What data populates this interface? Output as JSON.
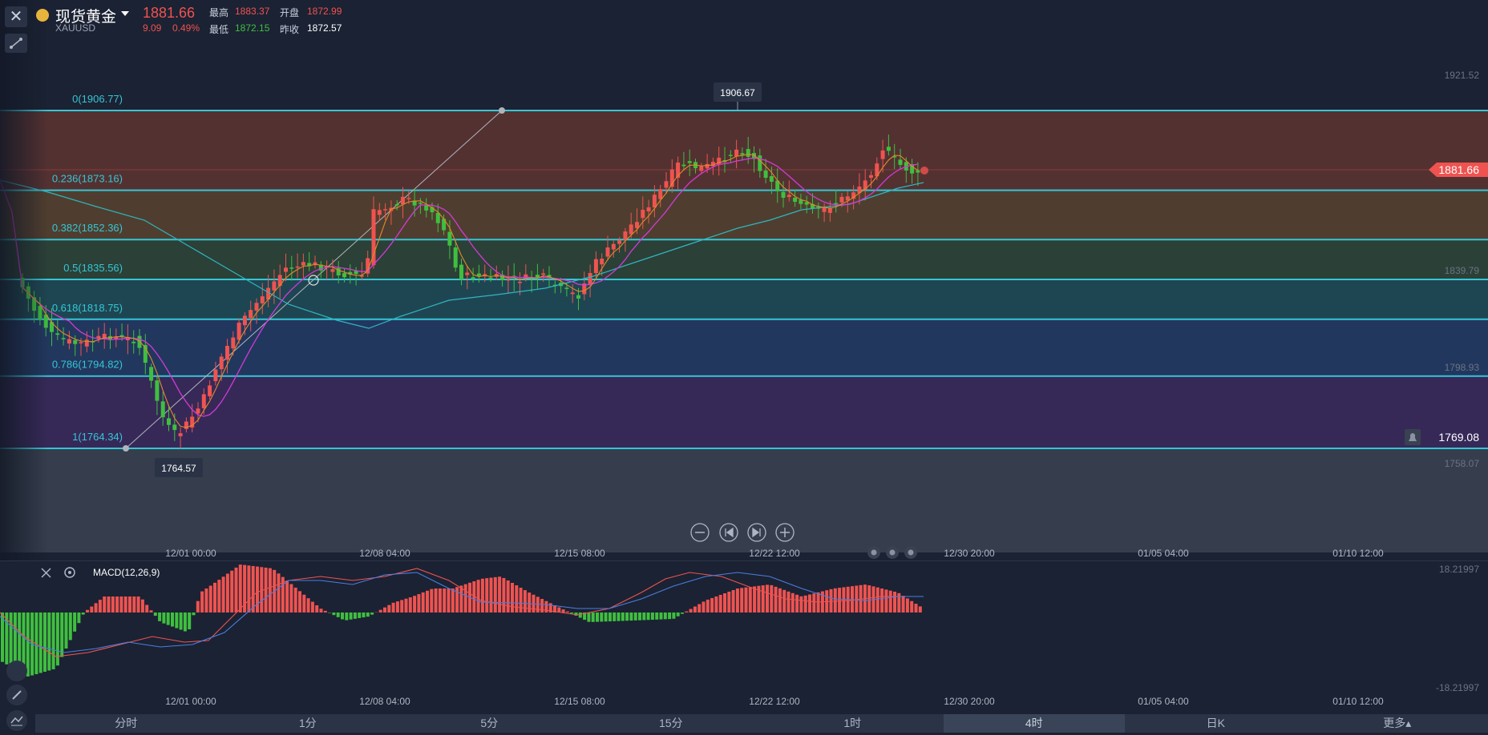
{
  "header": {
    "name": "现货黄金",
    "code": "XAUUSD",
    "price": "1881.66",
    "change": "9.09",
    "change_pct": "0.49%",
    "high_label": "最高",
    "high": "1883.37",
    "open_label": "开盘",
    "open": "1872.99",
    "low_label": "最低",
    "low": "1872.15",
    "prev_label": "昨收",
    "prev": "1872.57"
  },
  "fib": [
    {
      "label": "0(1906.77)",
      "price": 1906.77,
      "band": "#5a3331"
    },
    {
      "label": "0.236(1873.16)",
      "price": 1873.16,
      "band": "#55412f"
    },
    {
      "label": "0.382(1852.36)",
      "price": 1852.36,
      "band": "#2d4437"
    },
    {
      "label": "0.5(1835.56)",
      "price": 1835.56,
      "band": "#1f4a55"
    },
    {
      "label": "0.618(1818.75)",
      "price": 1818.75,
      "band": "#243a63"
    },
    {
      "label": "0.786(1794.82)",
      "price": 1794.82,
      "band": "#3a2a5c"
    },
    {
      "label": "1(1764.34)",
      "price": 1764.34,
      "band": "#3a4150"
    }
  ],
  "y_axis": [
    "1921.52",
    "1839.79",
    "1798.93",
    "1758.07"
  ],
  "current_price_tag": "1881.66",
  "alert_price": "1769.08",
  "high_marker": "1906.67",
  "low_marker": "1764.57",
  "x_axis": [
    "12/01 00:00",
    "12/08 04:00",
    "12/15 08:00",
    "12/22 12:00",
    "12/30 20:00",
    "01/05 04:00",
    "01/10 12:00"
  ],
  "macd": {
    "title": "MACD(12,26,9)",
    "top": "18.21997",
    "bottom": "-18.21997"
  },
  "tabs": [
    "分时",
    "1分",
    "5分",
    "15分",
    "1时",
    "4时",
    "日K",
    "更多▴"
  ],
  "active_tab": 5,
  "colors": {
    "up": "#ef5350",
    "down": "#3fbf3f",
    "fib_line": "#35c6d6",
    "ma_orange": "#e08a2a",
    "ma_magenta": "#d23ad6",
    "ma_teal": "#2fb6c0",
    "dif": "#ef5350",
    "dea": "#4a7fe0"
  }
}
